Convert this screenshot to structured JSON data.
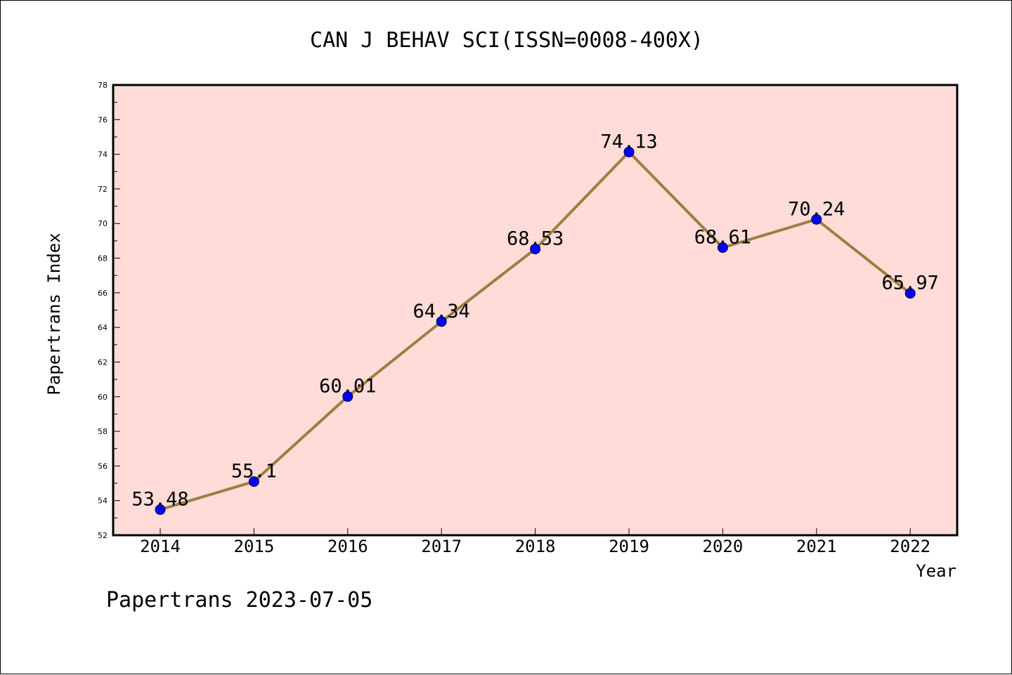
{
  "chart_data": {
    "type": "line",
    "title": "CAN J BEHAV SCI(ISSN=0008-400X)",
    "xlabel": "Year",
    "ylabel": "Papertrans Index",
    "categories": [
      "2014",
      "2015",
      "2016",
      "2017",
      "2018",
      "2019",
      "2020",
      "2021",
      "2022"
    ],
    "series": [
      {
        "values": [
          53.48,
          55.1,
          60.01,
          64.34,
          68.53,
          74.13,
          68.61,
          70.24,
          65.97
        ],
        "labels": [
          "53.48",
          "55.1",
          "60.01",
          "64.34",
          "68.53",
          "74.13",
          "68.61",
          "70.24",
          "65.97"
        ]
      }
    ],
    "ylim": [
      52,
      78
    ],
    "y_ticks": [
      "52",
      "54",
      "56",
      "58",
      "60",
      "62",
      "64",
      "66",
      "68",
      "70",
      "72",
      "74",
      "76",
      "78"
    ],
    "grid": false,
    "colors": {
      "line": "#9a8040",
      "marker": "#0000ff",
      "plot_background": "#ffdcd8"
    }
  },
  "footer": "Papertrans 2023-07-05"
}
